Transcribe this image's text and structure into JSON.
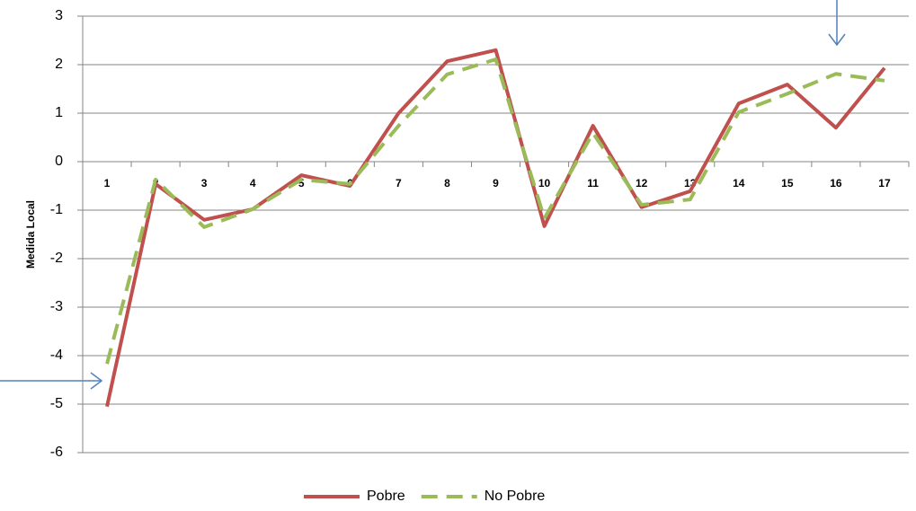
{
  "chart_data": {
    "type": "line",
    "y_label": "Medida Local",
    "categories": [
      "1",
      "2",
      "3",
      "4",
      "5",
      "6",
      "7",
      "8",
      "9",
      "10",
      "11",
      "12",
      "13",
      "14",
      "15",
      "16",
      "17"
    ],
    "series": [
      {
        "name": "Pobre",
        "color": "#c0504d",
        "dash": false,
        "values": [
          -5.05,
          -0.46,
          -1.2,
          -0.98,
          -0.28,
          -0.5,
          1.0,
          2.07,
          2.3,
          -1.33,
          0.74,
          -0.94,
          -0.61,
          1.2,
          1.59,
          0.7,
          1.93
        ]
      },
      {
        "name": "No Pobre",
        "color": "#9bbb59",
        "dash": true,
        "values": [
          -4.17,
          -0.37,
          -1.35,
          -0.98,
          -0.37,
          -0.46,
          0.74,
          1.8,
          2.11,
          -1.17,
          0.59,
          -0.89,
          -0.78,
          1.02,
          1.4,
          1.81,
          1.67
        ]
      }
    ],
    "ylim": [
      -6,
      3
    ],
    "yticks": [
      -6,
      -5,
      -4,
      -3,
      -2,
      -1,
      0,
      1,
      2,
      3
    ],
    "grid": true,
    "legend": "bottom"
  }
}
